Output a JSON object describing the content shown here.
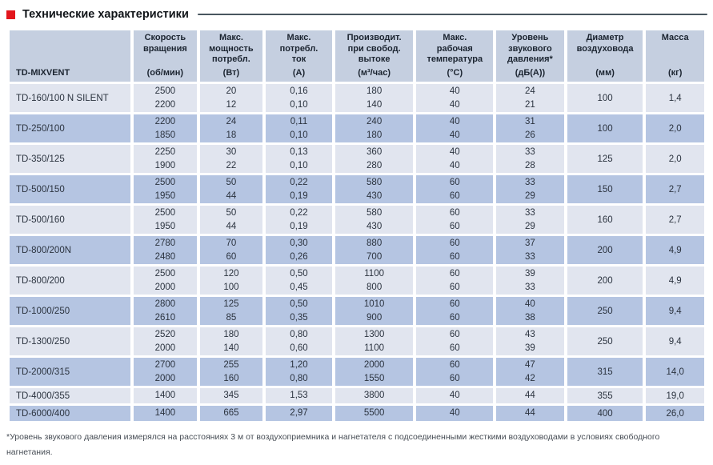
{
  "section": {
    "title": "Технические характеристики"
  },
  "table": {
    "columns": [
      {
        "id": "model",
        "label": "TD-MIXVENT",
        "unit": ""
      },
      {
        "id": "speed",
        "label": "Скорость\nвращения",
        "unit": "(об/мин)"
      },
      {
        "id": "power",
        "label": "Макс.\nмощность\nпотребл.",
        "unit": "(Вт)"
      },
      {
        "id": "current",
        "label": "Макс.\nпотребл.\nток",
        "unit": "(А)"
      },
      {
        "id": "airflow",
        "label": "Производит.\nпри свобод.\nвытоке",
        "unit": "(м³/час)"
      },
      {
        "id": "temp",
        "label": "Макс.\nрабочая\nтемпература",
        "unit": "(°C)"
      },
      {
        "id": "noise",
        "label": "Уровень\nзвукового\nдавления*",
        "unit": "(дБ(А))"
      },
      {
        "id": "diameter",
        "label": "Диаметр\nвоздуховода",
        "unit": "(мм)"
      },
      {
        "id": "mass",
        "label": "Масса",
        "unit": "(кг)"
      }
    ],
    "rows": [
      {
        "model": "TD-160/100 N SILENT",
        "speed": [
          "2500",
          "2200"
        ],
        "power": [
          "20",
          "12"
        ],
        "current": [
          "0,16",
          "0,10"
        ],
        "airflow": [
          "180",
          "140"
        ],
        "temp": [
          "40",
          "40"
        ],
        "noise": [
          "24",
          "21"
        ],
        "diameter": "100",
        "mass": "1,4"
      },
      {
        "model": "TD-250/100",
        "speed": [
          "2200",
          "1850"
        ],
        "power": [
          "24",
          "18"
        ],
        "current": [
          "0,11",
          "0,10"
        ],
        "airflow": [
          "240",
          "180"
        ],
        "temp": [
          "40",
          "40"
        ],
        "noise": [
          "31",
          "26"
        ],
        "diameter": "100",
        "mass": "2,0"
      },
      {
        "model": "TD-350/125",
        "speed": [
          "2250",
          "1900"
        ],
        "power": [
          "30",
          "22"
        ],
        "current": [
          "0,13",
          "0,10"
        ],
        "airflow": [
          "360",
          "280"
        ],
        "temp": [
          "40",
          "40"
        ],
        "noise": [
          "33",
          "28"
        ],
        "diameter": "125",
        "mass": "2,0"
      },
      {
        "model": "TD-500/150",
        "speed": [
          "2500",
          "1950"
        ],
        "power": [
          "50",
          "44"
        ],
        "current": [
          "0,22",
          "0,19"
        ],
        "airflow": [
          "580",
          "430"
        ],
        "temp": [
          "60",
          "60"
        ],
        "noise": [
          "33",
          "29"
        ],
        "diameter": "150",
        "mass": "2,7"
      },
      {
        "model": "TD-500/160",
        "speed": [
          "2500",
          "1950"
        ],
        "power": [
          "50",
          "44"
        ],
        "current": [
          "0,22",
          "0,19"
        ],
        "airflow": [
          "580",
          "430"
        ],
        "temp": [
          "60",
          "60"
        ],
        "noise": [
          "33",
          "29"
        ],
        "diameter": "160",
        "mass": "2,7"
      },
      {
        "model": "TD-800/200N",
        "speed": [
          "2780",
          "2480"
        ],
        "power": [
          "70",
          "60"
        ],
        "current": [
          "0,30",
          "0,26"
        ],
        "airflow": [
          "880",
          "700"
        ],
        "temp": [
          "60",
          "60"
        ],
        "noise": [
          "37",
          "33"
        ],
        "diameter": "200",
        "mass": "4,9"
      },
      {
        "model": "TD-800/200",
        "speed": [
          "2500",
          "2000"
        ],
        "power": [
          "120",
          "100"
        ],
        "current": [
          "0,50",
          "0,45"
        ],
        "airflow": [
          "1100",
          "800"
        ],
        "temp": [
          "60",
          "60"
        ],
        "noise": [
          "39",
          "33"
        ],
        "diameter": "200",
        "mass": "4,9"
      },
      {
        "model": "TD-1000/250",
        "speed": [
          "2800",
          "2610"
        ],
        "power": [
          "125",
          "85"
        ],
        "current": [
          "0,50",
          "0,35"
        ],
        "airflow": [
          "1010",
          "900"
        ],
        "temp": [
          "60",
          "60"
        ],
        "noise": [
          "40",
          "38"
        ],
        "diameter": "250",
        "mass": "9,4"
      },
      {
        "model": "TD-1300/250",
        "speed": [
          "2520",
          "2000"
        ],
        "power": [
          "180",
          "140"
        ],
        "current": [
          "0,80",
          "0,60"
        ],
        "airflow": [
          "1300",
          "1100"
        ],
        "temp": [
          "60",
          "60"
        ],
        "noise": [
          "43",
          "39"
        ],
        "diameter": "250",
        "mass": "9,4"
      },
      {
        "model": "TD-2000/315",
        "speed": [
          "2700",
          "2000"
        ],
        "power": [
          "255",
          "160"
        ],
        "current": [
          "1,20",
          "0,80"
        ],
        "airflow": [
          "2000",
          "1550"
        ],
        "temp": [
          "60",
          "60"
        ],
        "noise": [
          "47",
          "42"
        ],
        "diameter": "315",
        "mass": "14,0"
      },
      {
        "model": "TD-4000/355",
        "speed": [
          "1400"
        ],
        "power": [
          "345"
        ],
        "current": [
          "1,53"
        ],
        "airflow": [
          "3800"
        ],
        "temp": [
          "40"
        ],
        "noise": [
          "44"
        ],
        "diameter": "355",
        "mass": "19,0"
      },
      {
        "model": "TD-6000/400",
        "speed": [
          "1400"
        ],
        "power": [
          "665"
        ],
        "current": [
          "2,97"
        ],
        "airflow": [
          "5500"
        ],
        "temp": [
          "40"
        ],
        "noise": [
          "44"
        ],
        "diameter": "400",
        "mass": "26,0"
      }
    ]
  },
  "footnote": "*Уровень звукового давления измерялся на расстояниях 3 м от воздухоприемника и нагнетателя с подсоединенными жесткими воздуховодами в условиях свободного нагнетания.",
  "colors": {
    "accent_red": "#e2161c",
    "header_bg": "#c5cfe0",
    "row_light": "#e1e5ef",
    "row_dark": "#b5c5e2",
    "cell_text": "#2b333f",
    "header_text": "#1b2430",
    "rule": "#49565f",
    "page_bg": "#ffffff",
    "footnote_text": "#474d55"
  }
}
